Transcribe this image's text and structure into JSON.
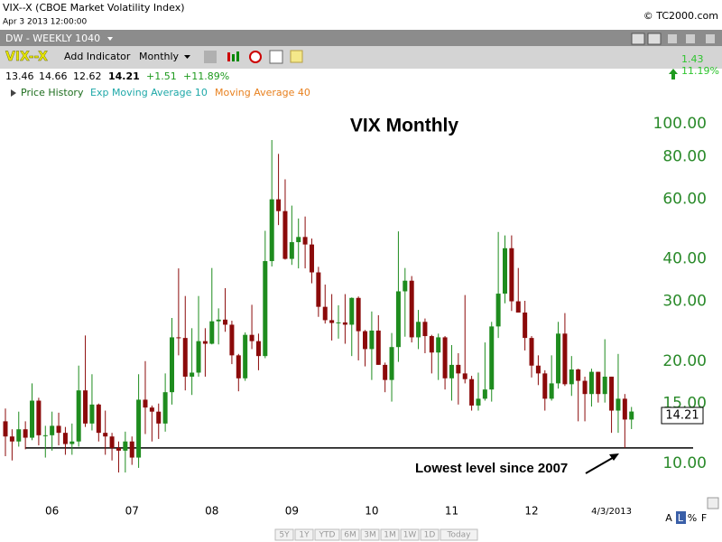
{
  "ui": {
    "symbol_title": "VIX--X (CBOE Market Volatility Index)",
    "timestamp": "Apr 3 2013 12:00:00",
    "copyright": "© TC2000.com",
    "layout_name": "DW - WEEKLY 1040",
    "symbol": "VIX--X",
    "add_indicator": "Add Indicator",
    "timeframe": "Monthly",
    "quote": {
      "open": "13.46",
      "high": "14.66",
      "low": "12.62",
      "last": "14.21",
      "change": "+1.51",
      "change_pct": "+11.89%"
    },
    "side_change": "1.43",
    "side_change_pct": "11.19%",
    "legend": [
      "Price History",
      "Exp Moving Average 10",
      "Moving Average 40"
    ],
    "range_buttons": [
      "5Y",
      "1Y",
      "YTD",
      "6M",
      "3M",
      "1M",
      "1W",
      "1D",
      "Today"
    ],
    "scale_buttons": [
      "A",
      "L",
      "%",
      "F"
    ]
  },
  "chart_data": {
    "type": "candlestick",
    "title": "VIX Monthly",
    "annotation": "Lowest level since 2007",
    "support_level": 11.1,
    "log_scale": true,
    "up_color": "#1e8c1e",
    "down_color": "#8b0a0a",
    "axis_color": "#2a8a2a",
    "categories": [
      null,
      null,
      null,
      null,
      null,
      null,
      null,
      "06",
      null,
      null,
      null,
      null,
      null,
      null,
      null,
      null,
      null,
      null,
      null,
      "07",
      null,
      null,
      null,
      null,
      null,
      null,
      null,
      null,
      null,
      null,
      null,
      "08",
      null,
      null,
      null,
      null,
      null,
      null,
      null,
      null,
      null,
      null,
      null,
      "09",
      null,
      null,
      null,
      null,
      null,
      null,
      null,
      null,
      null,
      null,
      null,
      "10",
      null,
      null,
      null,
      null,
      null,
      null,
      null,
      null,
      null,
      null,
      null,
      "11",
      null,
      null,
      null,
      null,
      null,
      null,
      null,
      null,
      null,
      null,
      null,
      "12",
      null,
      null,
      null,
      null,
      null,
      null,
      null,
      null,
      null,
      null,
      null,
      "4/3/2013",
      null,
      null,
      null
    ],
    "open": [
      13.3,
      12.0,
      11.6,
      12.6,
      11.9,
      15.3,
      12.1,
      12.1,
      12.9,
      12.3,
      11.4,
      11.6,
      16.4,
      13.1,
      14.9,
      12.3,
      12.0,
      11.1,
      10.9,
      11.6,
      10.4,
      15.4,
      14.6,
      14.2,
      13.1,
      16.2,
      23.5,
      23.4,
      18.0,
      18.5,
      22.9,
      22.5,
      26.2,
      26.5,
      25.6,
      20.8,
      17.8,
      23.9,
      22.9,
      20.7,
      39.4,
      59.9,
      55.3,
      40.0,
      44.8,
      46.4,
      44.1,
      36.5,
      28.9,
      26.4,
      25.9,
      26.0,
      25.6,
      30.7,
      24.5,
      21.7,
      24.6,
      19.5,
      17.6,
      22.0,
      32.1,
      34.5,
      23.5,
      26.1,
      23.7,
      21.2,
      23.5,
      17.8,
      19.5,
      18.4,
      17.7,
      14.8,
      15.5,
      16.5,
      25.3,
      31.6,
      43.0,
      30.0,
      27.8,
      23.4,
      19.4,
      18.4,
      15.5,
      17.2,
      24.1,
      17.1,
      18.9,
      17.5,
      16.0,
      18.6,
      16.0,
      18.0,
      14.3,
      15.5,
      13.46
    ],
    "high": [
      14.5,
      12.6,
      14.2,
      13.3,
      17.2,
      15.6,
      12.9,
      14.2,
      14.1,
      12.8,
      13.1,
      19.4,
      23.8,
      18.3,
      15.0,
      14.3,
      12.3,
      11.6,
      12.4,
      12.0,
      18.3,
      20.0,
      14.8,
      15.0,
      18.4,
      26.8,
      37.5,
      31.1,
      25.0,
      31.1,
      25.0,
      37.6,
      28.6,
      32.8,
      26.3,
      21.0,
      24.3,
      29.3,
      24.1,
      48.4,
      89.5,
      81.5,
      68.6,
      57.4,
      52.6,
      53.3,
      45.9,
      37.9,
      33.6,
      31.5,
      29.2,
      31.5,
      30.8,
      31.0,
      24.7,
      28.0,
      27.3,
      19.8,
      24.2,
      48.2,
      37.6,
      35.6,
      28.3,
      26.7,
      23.9,
      24.1,
      23.7,
      22.3,
      21.1,
      31.3,
      18.1,
      18.5,
      22.7,
      26.1,
      48.0,
      46.9,
      46.9,
      37.6,
      30.1,
      23.7,
      20.8,
      18.8,
      20.8,
      26.1,
      27.7,
      20.7,
      19.0,
      18.0,
      19.0,
      18.6,
      23.2,
      18.0,
      21.0,
      16.0,
      14.66
    ],
    "low": [
      10.5,
      10.2,
      11.2,
      11.0,
      11.7,
      11.3,
      10.4,
      10.9,
      11.3,
      10.6,
      10.6,
      11.2,
      12.8,
      12.5,
      11.6,
      10.6,
      10.2,
      9.4,
      9.4,
      9.9,
      9.7,
      12.2,
      11.6,
      11.8,
      12.4,
      14.9,
      20.8,
      16.4,
      15.9,
      18.0,
      18.0,
      22.4,
      22.4,
      24.4,
      19.6,
      16.3,
      17.5,
      21.7,
      18.8,
      20.4,
      38.0,
      50.3,
      39.8,
      38.4,
      37.5,
      37.5,
      33.9,
      27.0,
      25.8,
      23.0,
      23.3,
      22.5,
      20.7,
      20.1,
      19.3,
      17.6,
      19.5,
      16.2,
      15.2,
      19.9,
      23.6,
      22.7,
      21.7,
      21.1,
      18.4,
      17.6,
      16.5,
      15.3,
      14.9,
      17.2,
      14.3,
      14.3,
      15.3,
      15.2,
      23.4,
      29.6,
      28.1,
      27.8,
      21.5,
      17.9,
      17.0,
      14.3,
      15.3,
      16.6,
      16.9,
      15.8,
      13.3,
      13.3,
      14.7,
      15.1,
      15.1,
      12.3,
      12.3,
      11.1,
      12.62
    ],
    "close": [
      12.0,
      11.6,
      12.6,
      11.9,
      15.3,
      12.1,
      12.1,
      12.9,
      12.3,
      11.4,
      11.6,
      16.4,
      13.1,
      14.9,
      12.3,
      12.0,
      11.1,
      10.9,
      11.6,
      10.4,
      15.4,
      14.6,
      14.2,
      13.1,
      16.2,
      23.5,
      23.4,
      18.0,
      18.5,
      22.9,
      22.5,
      26.2,
      26.5,
      25.6,
      20.8,
      17.8,
      23.9,
      22.9,
      20.7,
      39.4,
      59.9,
      55.3,
      40.0,
      44.8,
      46.4,
      44.1,
      36.5,
      28.9,
      26.4,
      25.9,
      26.0,
      25.6,
      30.7,
      24.5,
      21.7,
      24.6,
      19.5,
      17.6,
      22.0,
      32.1,
      34.5,
      23.5,
      26.1,
      23.7,
      21.2,
      23.5,
      17.8,
      19.5,
      18.4,
      17.7,
      14.8,
      15.5,
      16.5,
      25.3,
      31.6,
      43.0,
      30.0,
      27.8,
      23.4,
      19.4,
      18.4,
      15.5,
      17.2,
      24.1,
      17.1,
      18.9,
      17.5,
      16.0,
      18.6,
      16.0,
      18.0,
      14.3,
      15.5,
      13.46,
      14.21
    ],
    "ylim": [
      7.73,
      116.5
    ],
    "yticks": [
      {
        "value": 10,
        "label": "10.00"
      },
      {
        "value": 15,
        "label": "15.00"
      },
      {
        "value": 20,
        "label": "20.00"
      },
      {
        "value": 30,
        "label": "30.00"
      },
      {
        "value": 40,
        "label": "40.00"
      },
      {
        "value": 60,
        "label": "60.00"
      },
      {
        "value": 80,
        "label": "80.00"
      },
      {
        "value": 100,
        "label": "100.00"
      }
    ]
  }
}
